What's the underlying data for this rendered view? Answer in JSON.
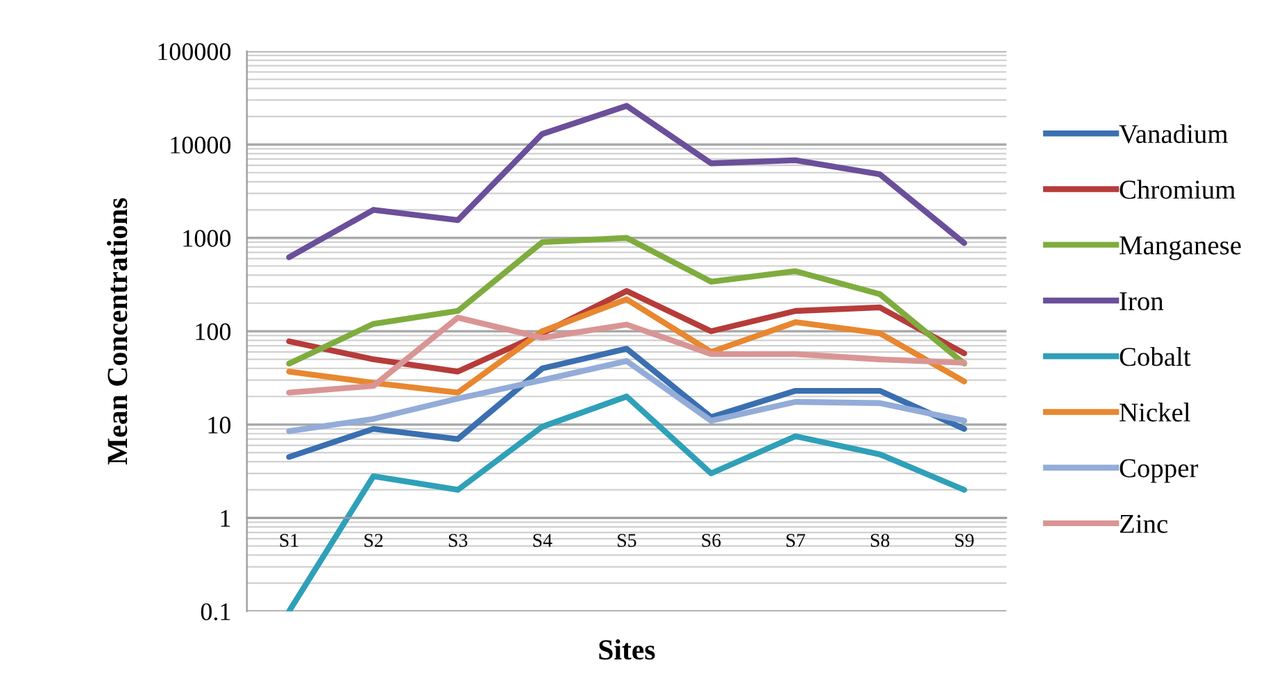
{
  "chart_data": {
    "type": "line",
    "xlabel": "Sites",
    "ylabel": "Mean Concentrations",
    "categories": [
      "S1",
      "S2",
      "S3",
      "S4",
      "S5",
      "S6",
      "S7",
      "S8",
      "S9"
    ],
    "log": "y",
    "ylim": [
      0.1,
      100000
    ],
    "yticks": [
      0.1,
      1,
      10,
      100,
      1000,
      10000,
      100000
    ],
    "grid": "y",
    "legend": "right",
    "marker": "none",
    "line_style": "solid",
    "series": [
      {
        "name": "Vanadium",
        "color": "#3a6fb0",
        "values": [
          4.5,
          9,
          7,
          40,
          65,
          12,
          23,
          23,
          9
        ]
      },
      {
        "name": "Chromium",
        "color": "#b63c3a",
        "values": [
          78,
          50,
          37,
          95,
          270,
          100,
          165,
          180,
          58
        ]
      },
      {
        "name": "Manganese",
        "color": "#7fac3e",
        "values": [
          45,
          120,
          165,
          900,
          1000,
          340,
          440,
          250,
          45
        ]
      },
      {
        "name": "Iron",
        "color": "#6b4f9a",
        "values": [
          620,
          2000,
          1550,
          13000,
          26000,
          6300,
          6800,
          4800,
          880
        ]
      },
      {
        "name": "Cobalt",
        "color": "#2fa0b8",
        "values": [
          0.1,
          2.8,
          2,
          9.5,
          20,
          3,
          7.5,
          4.8,
          2
        ]
      },
      {
        "name": "Nickel",
        "color": "#e8872f",
        "values": [
          37,
          28,
          22,
          100,
          220,
          60,
          125,
          95,
          29
        ]
      },
      {
        "name": "Copper",
        "color": "#93acd8",
        "values": [
          8.5,
          11.5,
          19,
          30,
          48,
          11,
          17.5,
          17,
          11
        ]
      },
      {
        "name": "Zinc",
        "color": "#d99594",
        "values": [
          22,
          26,
          140,
          85,
          118,
          57,
          57,
          50,
          46
        ]
      }
    ]
  }
}
